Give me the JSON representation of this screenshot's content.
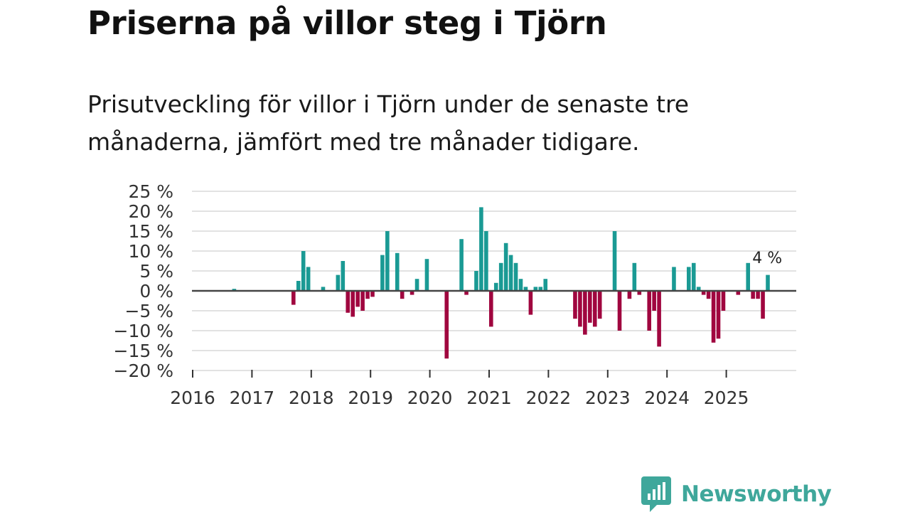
{
  "title": "Priserna på villor steg i Tjörn",
  "subtitle": "Prisutveckling för villor i Tjörn under de senaste tre månaderna, jämfört med tre månader tidigare.",
  "brand": {
    "name": "Newsworthy",
    "icon": "newsworthy-logo-icon",
    "color": "#3fa79b"
  },
  "colors": {
    "positive": "#1a9a94",
    "negative": "#a0063f",
    "grid": "#d9d9d9",
    "zero": "#444444"
  },
  "chart_data": {
    "type": "bar",
    "ylim": [
      -20,
      25
    ],
    "yticks": [
      25,
      20,
      15,
      10,
      5,
      0,
      -5,
      -10,
      -15,
      -20
    ],
    "ytick_labels": [
      "25 %",
      "20 %",
      "15 %",
      "10 %",
      "5 %",
      "0 %",
      "−5 %",
      "−10 %",
      "−15 %",
      "−20 %"
    ],
    "xticks": [
      "2016",
      "2017",
      "2018",
      "2019",
      "2020",
      "2021",
      "2022",
      "2023",
      "2024",
      "2025"
    ],
    "start": "2016-01",
    "months": 119,
    "last_label": "4 %",
    "values": [
      null,
      null,
      null,
      null,
      null,
      null,
      null,
      null,
      0.5,
      null,
      null,
      null,
      null,
      null,
      null,
      null,
      null,
      null,
      null,
      null,
      -3.5,
      2.5,
      10,
      6,
      null,
      null,
      1,
      null,
      null,
      4,
      7.5,
      -5.5,
      -6.5,
      -4,
      -5,
      -2,
      -1.5,
      null,
      9,
      15,
      null,
      9.5,
      -2,
      null,
      -1,
      3,
      null,
      8,
      null,
      null,
      null,
      -17,
      null,
      null,
      13,
      -1,
      null,
      5,
      21,
      15,
      -9,
      2,
      7,
      12,
      9,
      7,
      3,
      1,
      -6,
      1,
      1,
      3,
      null,
      null,
      null,
      null,
      null,
      -7,
      -9,
      -11,
      -8,
      -9,
      -7,
      null,
      null,
      15,
      -10,
      null,
      -2,
      7,
      -1,
      null,
      -10,
      -5,
      -14,
      null,
      null,
      6,
      null,
      null,
      6,
      7,
      1,
      -1,
      -2,
      -13,
      -12,
      -5,
      null,
      null,
      -1,
      null,
      7,
      -2,
      -2,
      -7,
      4,
      null,
      null
    ]
  }
}
